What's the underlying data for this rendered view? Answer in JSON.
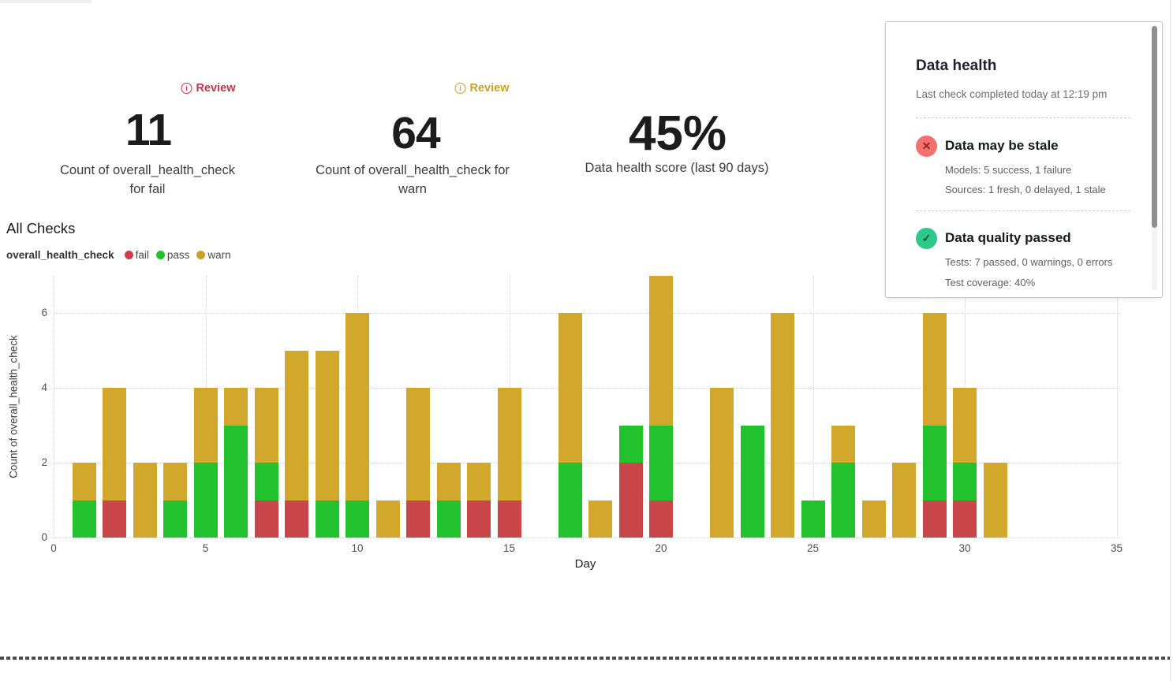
{
  "kpis": [
    {
      "badge": "Review",
      "value": "11",
      "label_line1": "Count of overall_health_check",
      "label_line2": "for fail",
      "badge_color": "#c2354b",
      "info_glyph": "i"
    },
    {
      "badge": "Review",
      "value": "64",
      "label_line1": "Count of overall_health_check for",
      "label_line2": "warn",
      "badge_color": "#c9a227",
      "info_glyph": "i"
    },
    {
      "value": "45%",
      "label": "Data health score (last 90 days)"
    }
  ],
  "section": {
    "title": "All Checks",
    "legend_series": "overall_health_check",
    "legend": [
      {
        "label": "fail",
        "color": "#c8414b"
      },
      {
        "label": "pass",
        "color": "#21c12d"
      },
      {
        "label": "warn",
        "color": "#c9a227"
      }
    ]
  },
  "chart_data": {
    "type": "bar",
    "stacked": true,
    "title": "All Checks",
    "xlabel": "Day",
    "ylabel": "Count of overall_health_check",
    "x_ticks": [
      0,
      5,
      10,
      15,
      20,
      25,
      30,
      35
    ],
    "y_ticks": [
      0,
      2,
      4,
      6
    ],
    "xlim": [
      0,
      35
    ],
    "ylim": [
      0,
      7
    ],
    "grid": true,
    "legend_position": "top-left",
    "categories": [
      1,
      2,
      3,
      4,
      5,
      6,
      7,
      8,
      9,
      10,
      11,
      12,
      13,
      14,
      15,
      16,
      17,
      18,
      19,
      20,
      21,
      22,
      23,
      24,
      25,
      26,
      27,
      28,
      29,
      30,
      31
    ],
    "series": [
      {
        "name": "fail",
        "color": "#c84649",
        "values": [
          0,
          1,
          0,
          0,
          0,
          0,
          1,
          1,
          0,
          0,
          0,
          1,
          0,
          1,
          1,
          0,
          0,
          0,
          2,
          1,
          0,
          0,
          0,
          0,
          0,
          0,
          0,
          0,
          1,
          1,
          0
        ]
      },
      {
        "name": "pass",
        "color": "#22c22e",
        "values": [
          1,
          0,
          0,
          1,
          2,
          3,
          1,
          0,
          1,
          1,
          0,
          0,
          1,
          0,
          0,
          0,
          2,
          0,
          1,
          2,
          0,
          0,
          3,
          0,
          1,
          2,
          0,
          0,
          2,
          1,
          0
        ]
      },
      {
        "name": "warn",
        "color": "#d2a82c",
        "values": [
          1,
          3,
          2,
          1,
          2,
          1,
          2,
          4,
          4,
          5,
          1,
          3,
          1,
          1,
          3,
          0,
          4,
          1,
          0,
          4,
          0,
          4,
          0,
          6,
          0,
          1,
          1,
          2,
          3,
          2,
          2
        ]
      }
    ]
  },
  "panel": {
    "title": "Data health",
    "subtitle": "Last check completed today at 12:19 pm",
    "sections": [
      {
        "icon_glyph": "✕",
        "title": "Data may be stale",
        "line1": "Models: 5 success, 1 failure",
        "line2": "Sources: 1 fresh, 0 delayed, 1 stale",
        "icon_bg": "#f2716d"
      },
      {
        "icon_glyph": "✓",
        "title": "Data quality passed",
        "line1": "Tests: 7 passed, 0 warnings, 0 errors",
        "line2": "Test coverage: 40%",
        "icon_bg": "#2dc98b"
      }
    ]
  }
}
